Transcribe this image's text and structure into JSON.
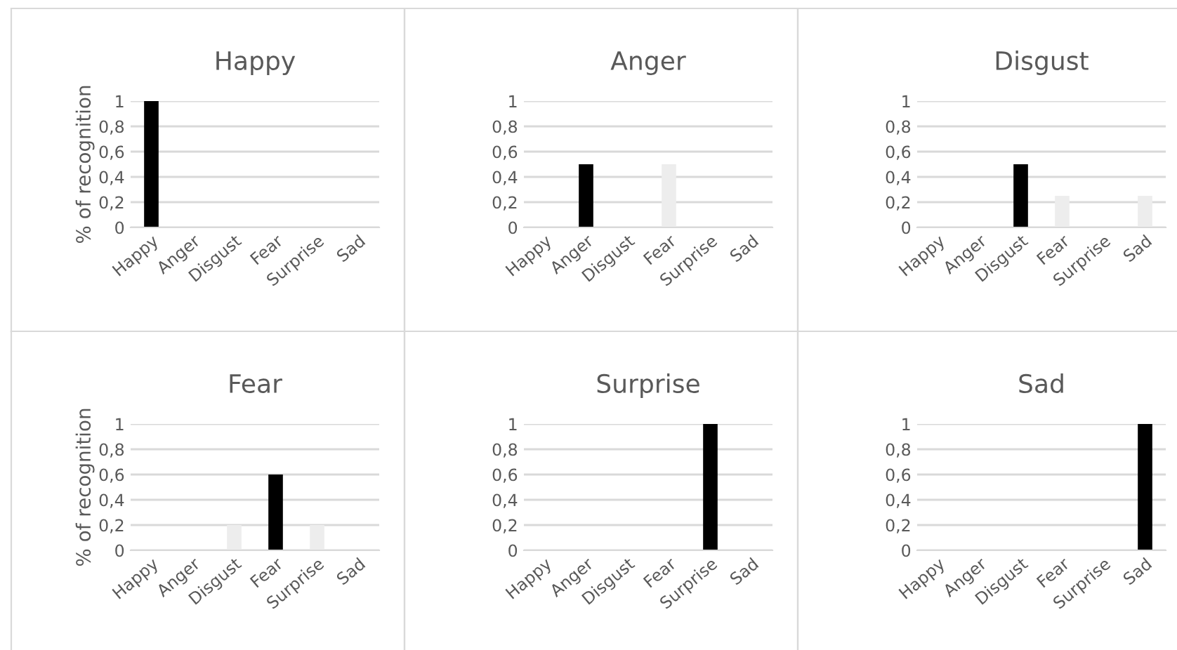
{
  "chart_data": [
    {
      "type": "bar",
      "title": "Happy",
      "ylabel": "% of recognition",
      "categories": [
        "Happy",
        "Anger",
        "Disgust",
        "Fear",
        "Surprise",
        "Sad"
      ],
      "values": [
        1,
        0,
        0,
        0,
        0,
        0
      ],
      "colors": [
        "#000000",
        "#ededed",
        "#ededed",
        "#ededed",
        "#ededed",
        "#ededed"
      ],
      "ylim": [
        0,
        1
      ],
      "yticks": [
        0,
        {
          "value": 0.2,
          "label": "0,2"
        },
        {
          "value": 0.4,
          "label": "0,4"
        },
        {
          "value": 0.6,
          "label": "0,6"
        },
        {
          "value": 0.8,
          "label": "0,8"
        },
        1
      ],
      "grid": "y"
    },
    {
      "type": "bar",
      "title": "Anger",
      "categories": [
        "Happy",
        "Anger",
        "Disgust",
        "Fear",
        "Surprise",
        "Sad"
      ],
      "values": [
        0,
        0.5,
        0,
        0.5,
        0,
        0
      ],
      "colors": [
        "#ededed",
        "#000000",
        "#ededed",
        "#ededed",
        "#ededed",
        "#ededed"
      ],
      "ylim": [
        0,
        1
      ],
      "yticks": [
        0,
        {
          "value": 0.2,
          "label": "0,2"
        },
        {
          "value": 0.4,
          "label": "0,4"
        },
        {
          "value": 0.6,
          "label": "0,6"
        },
        {
          "value": 0.8,
          "label": "0,8"
        },
        1
      ],
      "grid": "y"
    },
    {
      "type": "bar",
      "title": "Disgust",
      "categories": [
        "Happy",
        "Anger",
        "Disgust",
        "Fear",
        "Surprise",
        "Sad"
      ],
      "values": [
        0,
        0,
        0.5,
        0.25,
        0,
        0.25
      ],
      "colors": [
        "#ededed",
        "#ededed",
        "#000000",
        "#ededed",
        "#ededed",
        "#ededed"
      ],
      "ylim": [
        0,
        1
      ],
      "yticks": [
        0,
        {
          "value": 0.2,
          "label": "0,2"
        },
        {
          "value": 0.4,
          "label": "0,4"
        },
        {
          "value": 0.6,
          "label": "0,6"
        },
        {
          "value": 0.8,
          "label": "0,8"
        },
        1
      ],
      "grid": "y"
    },
    {
      "type": "bar",
      "title": "Fear",
      "ylabel": "% of recognition",
      "categories": [
        "Happy",
        "Anger",
        "Disgust",
        "Fear",
        "Surprise",
        "Sad"
      ],
      "values": [
        0,
        0,
        0.2,
        0.6,
        0.2,
        0
      ],
      "colors": [
        "#ededed",
        "#ededed",
        "#ededed",
        "#000000",
        "#ededed",
        "#ededed"
      ],
      "ylim": [
        0,
        1
      ],
      "yticks": [
        0,
        {
          "value": 0.2,
          "label": "0,2"
        },
        {
          "value": 0.4,
          "label": "0,4"
        },
        {
          "value": 0.6,
          "label": "0,6"
        },
        {
          "value": 0.8,
          "label": "0,8"
        },
        1
      ],
      "grid": "y"
    },
    {
      "type": "bar",
      "title": "Surprise",
      "categories": [
        "Happy",
        "Anger",
        "Disgust",
        "Fear",
        "Surprise",
        "Sad"
      ],
      "values": [
        0,
        0,
        0,
        0,
        1,
        0
      ],
      "colors": [
        "#ededed",
        "#ededed",
        "#ededed",
        "#ededed",
        "#000000",
        "#ededed"
      ],
      "ylim": [
        0,
        1
      ],
      "yticks": [
        0,
        {
          "value": 0.2,
          "label": "0,2"
        },
        {
          "value": 0.4,
          "label": "0,4"
        },
        {
          "value": 0.6,
          "label": "0,6"
        },
        {
          "value": 0.8,
          "label": "0,8"
        },
        1
      ],
      "grid": "y"
    },
    {
      "type": "bar",
      "title": "Sad",
      "categories": [
        "Happy",
        "Anger",
        "Disgust",
        "Fear",
        "Surprise",
        "Sad"
      ],
      "values": [
        0,
        0,
        0,
        0,
        0,
        1
      ],
      "colors": [
        "#ededed",
        "#ededed",
        "#ededed",
        "#ededed",
        "#ededed",
        "#000000"
      ],
      "ylim": [
        0,
        1
      ],
      "yticks": [
        0,
        {
          "value": 0.2,
          "label": "0,2"
        },
        {
          "value": 0.4,
          "label": "0,4"
        },
        {
          "value": 0.6,
          "label": "0,6"
        },
        {
          "value": 0.8,
          "label": "0,8"
        },
        1
      ],
      "grid": "y"
    }
  ]
}
